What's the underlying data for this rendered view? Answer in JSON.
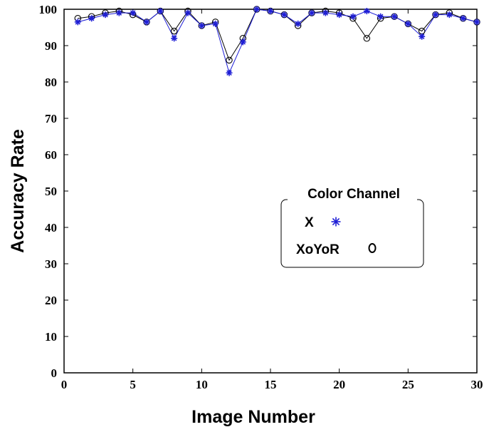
{
  "chart_data": {
    "type": "line",
    "xlabel": "Image Number",
    "ylabel": "Accuracy Rate",
    "xlim": [
      0,
      30
    ],
    "ylim": [
      0,
      100
    ],
    "xticks": [
      "0",
      "5",
      "10",
      "15",
      "20",
      "25",
      "30"
    ],
    "yticks": [
      "0",
      "10",
      "20",
      "30",
      "40",
      "50",
      "60",
      "70",
      "80",
      "90",
      "100"
    ],
    "grid": false,
    "x": [
      1,
      2,
      3,
      4,
      5,
      6,
      7,
      8,
      9,
      10,
      11,
      12,
      13,
      14,
      15,
      16,
      17,
      18,
      19,
      20,
      21,
      22,
      23,
      24,
      25,
      26,
      27,
      28,
      29,
      30
    ],
    "series": [
      {
        "name": "X",
        "marker": "*",
        "color": "#1f1fd6",
        "values": [
          96.5,
          97.5,
          98.5,
          99,
          99,
          96.5,
          99.5,
          92,
          99,
          95.5,
          96,
          82.5,
          91,
          100,
          99.5,
          98.5,
          96,
          99,
          99,
          98.5,
          98,
          99.5,
          98,
          98,
          96,
          92.5,
          98.5,
          98.5,
          97.5,
          96.5
        ]
      },
      {
        "name": "XoYoR",
        "marker": "o",
        "color": "#000000",
        "values": [
          97.5,
          98,
          99,
          99.5,
          98.5,
          96.5,
          99.5,
          94,
          99.5,
          95.5,
          96.5,
          86,
          92,
          100,
          99.5,
          98.5,
          95.5,
          99,
          99.5,
          99,
          97.5,
          92,
          97.5,
          98,
          96,
          94,
          98.5,
          99,
          97.5,
          96.5
        ]
      }
    ],
    "legend": {
      "title": "Color Channel",
      "placement": "center-right",
      "entries": [
        {
          "label": "X",
          "symbol": "*"
        },
        {
          "label": "XoYoR",
          "symbol": "o"
        }
      ]
    }
  }
}
